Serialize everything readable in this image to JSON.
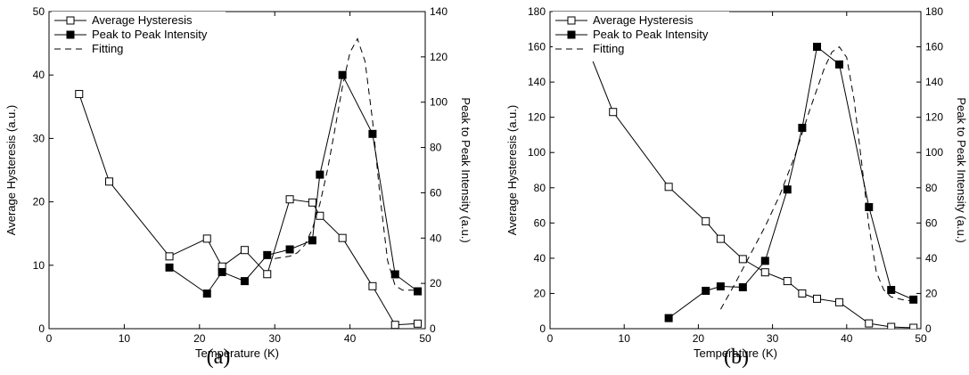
{
  "chart_data": [
    {
      "type": "line",
      "caption": "(a)",
      "xlabel": "Temperature (K)",
      "ylabel": "Average Hysteresis (a.u.)",
      "ylabel_right": "Peak to Peak Intensity (a.u.)",
      "xlim": [
        0,
        50
      ],
      "ylim": [
        0,
        50
      ],
      "ylim_right": [
        0,
        140
      ],
      "xticks": [
        0,
        10,
        20,
        30,
        40,
        50
      ],
      "yticks": [
        0,
        10,
        20,
        30,
        40,
        50
      ],
      "yticks_right": [
        0,
        20,
        40,
        60,
        80,
        100,
        120,
        140
      ],
      "legend_position": "top-left",
      "grid": false,
      "series": [
        {
          "name": "Average Hysteresis",
          "axis": "left",
          "style": "open-square-solid",
          "x": [
            4,
            8,
            16,
            21,
            23,
            26,
            29,
            32,
            35,
            36,
            39,
            43,
            46,
            49
          ],
          "y": [
            37,
            23.2,
            11.4,
            14.2,
            9.8,
            12.4,
            8.6,
            20.4,
            19.9,
            17.8,
            14.3,
            6.7,
            0.6,
            0.8
          ]
        },
        {
          "name": "Peak to Peak Intensity",
          "axis": "right",
          "style": "filled-square-solid",
          "x": [
            16,
            21,
            23,
            26,
            29,
            32,
            35,
            36,
            39,
            43,
            46,
            49
          ],
          "y": [
            27,
            15.5,
            25,
            21,
            32.5,
            35,
            39,
            68,
            112,
            86,
            24,
            16.5
          ]
        },
        {
          "name": "Fitting",
          "axis": "right",
          "style": "dashed",
          "x": [
            30,
            32,
            33,
            34,
            35,
            36,
            37,
            38,
            39,
            40,
            41,
            42,
            43,
            44,
            45,
            46,
            47,
            48,
            49
          ],
          "y": [
            31,
            32,
            33.5,
            37,
            44,
            55,
            70,
            88,
            107,
            122,
            128,
            118,
            92,
            58,
            30,
            19,
            17,
            17,
            17
          ]
        }
      ]
    },
    {
      "type": "line",
      "caption": "(b)",
      "xlabel": "Temperature (K)",
      "ylabel": "Average Hysteresis (a.u.)",
      "ylabel_right": "Peak to Peak Intensity (a.u.)",
      "xlim": [
        0,
        50
      ],
      "ylim": [
        0,
        180
      ],
      "ylim_right": [
        0,
        180
      ],
      "xticks": [
        0,
        10,
        20,
        30,
        40,
        50
      ],
      "yticks": [
        0,
        20,
        40,
        60,
        80,
        100,
        120,
        140,
        160,
        180
      ],
      "yticks_right": [
        0,
        20,
        40,
        60,
        80,
        100,
        120,
        140,
        160,
        180
      ],
      "legend_position": "top-left",
      "grid": false,
      "series": [
        {
          "name": "Average Hysteresis",
          "axis": "left",
          "style": "open-square-solid",
          "x": [
            5,
            8.5,
            16,
            21,
            23,
            26,
            29,
            32,
            34,
            36,
            39,
            43,
            46,
            49
          ],
          "y": [
            160,
            123,
            80.5,
            61,
            51,
            39.5,
            32,
            27,
            20,
            17,
            15,
            3,
            1,
            0.5
          ]
        },
        {
          "name": "Peak to Peak Intensity",
          "axis": "right",
          "style": "filled-square-solid",
          "x": [
            16,
            21,
            23,
            26,
            29,
            32,
            34,
            36,
            39,
            43,
            46,
            49
          ],
          "y": [
            6,
            21.5,
            24,
            23.5,
            38.5,
            79,
            114,
            160,
            150,
            69,
            22,
            16.5
          ]
        },
        {
          "name": "Fitting",
          "axis": "right",
          "style": "dashed",
          "x": [
            23,
            25,
            27,
            29,
            31,
            33,
            35,
            37,
            38,
            39,
            40,
            41,
            42,
            43,
            44,
            45,
            46,
            47,
            48,
            49
          ],
          "y": [
            11,
            26,
            42,
            58,
            76,
            98,
            124,
            148,
            157,
            160,
            154,
            130,
            95,
            58,
            32,
            22,
            18,
            17,
            16,
            16
          ]
        }
      ]
    }
  ]
}
